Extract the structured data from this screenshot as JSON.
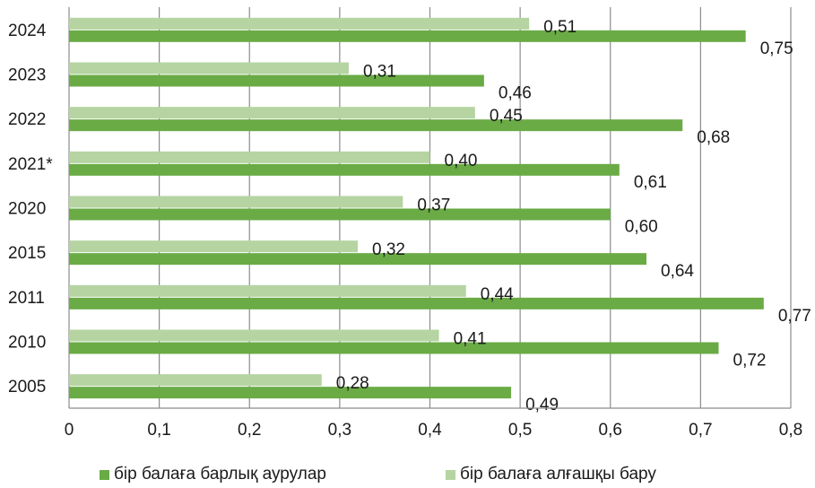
{
  "chart_data": {
    "type": "bar",
    "orientation": "horizontal",
    "categories": [
      "2024",
      "2023",
      "2022",
      "2021*",
      "2020",
      "2015",
      "2011",
      "2010",
      "2005"
    ],
    "series": [
      {
        "name": "бір балаға алғашқы бару",
        "color": "#b5d4a1",
        "values": [
          0.51,
          0.31,
          0.45,
          0.4,
          0.37,
          0.32,
          0.44,
          0.41,
          0.28
        ],
        "labels": [
          "0,51",
          "0,31",
          "0,45",
          "0,40",
          "0,37",
          "0,32",
          "0,44",
          "0,41",
          "0,28"
        ]
      },
      {
        "name": "бір балаға барлық аурулар",
        "color": "#6aab45",
        "values": [
          0.75,
          0.46,
          0.68,
          0.61,
          0.6,
          0.64,
          0.77,
          0.72,
          0.49
        ],
        "labels": [
          "0,75",
          "0,46",
          "0,68",
          "0,61",
          "0,60",
          "0,64",
          "0,77",
          "0,72",
          "0,49"
        ]
      }
    ],
    "x_ticks": [
      "0",
      "0,1",
      "0,2",
      "0,3",
      "0,4",
      "0,5",
      "0,6",
      "0,7",
      "0,8"
    ],
    "xlim": [
      0,
      0.8
    ],
    "title": "",
    "xlabel": "",
    "ylabel": "",
    "grid": true,
    "legend": {
      "placement": "bottom",
      "entries": [
        "бір балаға барлық аурулар",
        "бір балаға алғашқы бару"
      ]
    }
  }
}
